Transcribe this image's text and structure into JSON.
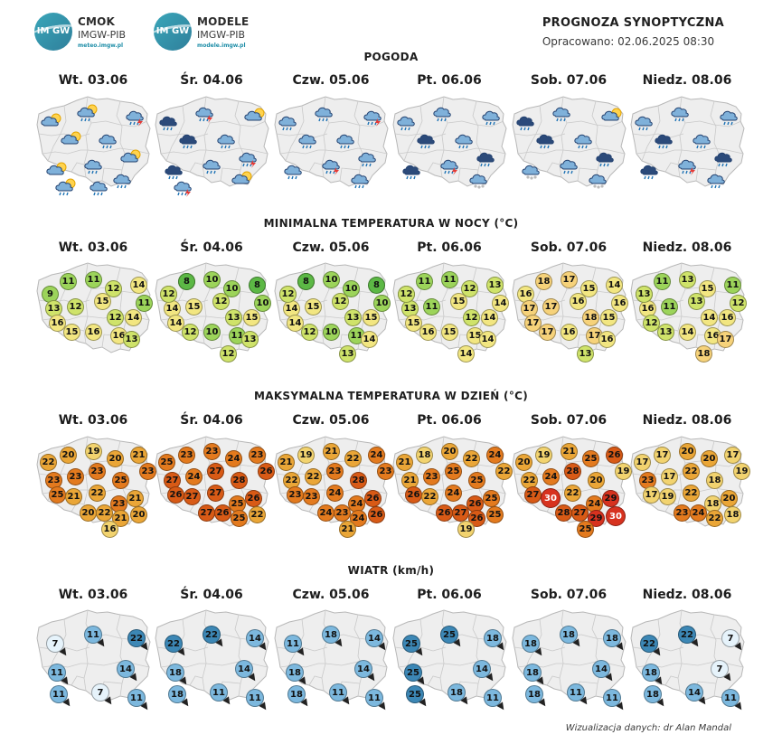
{
  "header": {
    "logo1": {
      "name": "CMOK",
      "sub": "IMGW-PIB",
      "url": "meteo.imgw.pl",
      "mark": "IM GW"
    },
    "logo2": {
      "name": "MODELE",
      "sub": "IMGW-PIB",
      "url": "modele.imgw.pl",
      "mark": "IM GW"
    },
    "title": "PROGNOZA SYNOPTYCZNA",
    "date": "Opracowano: 02.06.2025 08:30"
  },
  "days": [
    "Wt. 03.06",
    "Śr. 04.06",
    "Czw. 05.06",
    "Pt. 06.06",
    "Sob. 07.06",
    "Niedz. 08.06"
  ],
  "sections": {
    "weather": "POGODA",
    "min": "MINIMALNA TEMPERATURA W NOCY (°C)",
    "max": "MAKSYMALNA TEMPERATURA W DZIEŃ (°C)",
    "wind": "WIATR (km/h)"
  },
  "colors": {
    "map_fill": "#eeeeee",
    "map_stroke": "#b8b8b8",
    "min_green_dark": "#5cb845",
    "min_green": "#9cd45a",
    "min_yellowgreen": "#cfe36a",
    "min_yellow": "#f2e681",
    "min_orange_light": "#f6d27a",
    "max_light": "#f2d36f",
    "max_mid": "#eaa637",
    "max_strong": "#e37a1e",
    "max_deep": "#d85a16",
    "max_hot": "#d7321f",
    "wind_light": "#e6f3fb",
    "wind_mid": "#7cb8de",
    "wind_dark": "#3c87b5"
  },
  "weather_icons": [
    [
      "cloud-sun",
      "cloud-rain-sun",
      "cloud-rain-thunder",
      "cloud-sun",
      "cloud-rain",
      "cloud-sun",
      "cloud-sun",
      "cloud-rain",
      "cloud-rain",
      "cloud-rain-sun",
      "cloud-rain"
    ],
    [
      "cloud-rain-dark",
      "cloud-rain-thunder",
      "cloud-sun",
      "cloud-rain-dark",
      "cloud-rain",
      "cloud-rain-thunder",
      "cloud-rain-dark",
      "cloud-rain",
      "cloud-sun",
      "cloud-rain-thunder"
    ],
    [
      "cloud-rain",
      "cloud-rain",
      "cloud-rain-thunder",
      "cloud-rain",
      "cloud-rain",
      "cloud-rain",
      "cloud-rain",
      "cloud-rain-thunder",
      "cloud-rain"
    ],
    [
      "cloud-rain",
      "cloud-rain",
      "cloud-rain",
      "cloud-rain-dark",
      "cloud-rain",
      "cloud-rain-dark",
      "cloud-rain-dark",
      "cloud-rain-thunder",
      "cloud-hail"
    ],
    [
      "cloud-rain-dark",
      "cloud-rain",
      "cloud-sun",
      "cloud-rain-dark",
      "cloud-rain",
      "cloud-rain-dark",
      "cloud-hail",
      "cloud-rain",
      "cloud-hail"
    ],
    [
      "cloud-rain",
      "cloud-rain",
      "cloud-rain",
      "cloud-rain-dark",
      "cloud-rain",
      "cloud-rain-dark",
      "cloud-rain-dark",
      "cloud-rain-thunder",
      "cloud-rain"
    ]
  ],
  "min_temps": [
    [
      "9",
      "11",
      "11",
      "12",
      "14",
      "11",
      "13",
      "12",
      "15",
      "12",
      "14",
      "16",
      "15",
      "16",
      "16",
      "13"
    ],
    [
      "15",
      "13",
      "10",
      "10",
      "8",
      "10",
      "14",
      "15",
      "12",
      "13",
      "15",
      "14",
      "12",
      "10",
      "11",
      "13",
      "12",
      "12",
      "8"
    ],
    [
      "15",
      "13",
      "10",
      "10",
      "8",
      "10",
      "14",
      "15",
      "12",
      "13",
      "15",
      "14",
      "12",
      "10",
      "11",
      "14",
      "13",
      "12",
      "8"
    ],
    [
      "11",
      "11",
      "11",
      "12",
      "13",
      "14",
      "13",
      "11",
      "15",
      "12",
      "14",
      "15",
      "16",
      "15",
      "15",
      "14",
      "14",
      "12"
    ],
    [
      "16",
      "18",
      "17",
      "15",
      "14",
      "16",
      "17",
      "17",
      "16",
      "18",
      "15",
      "17",
      "17",
      "16",
      "17",
      "16",
      "13"
    ],
    [
      "11",
      "11",
      "13",
      "15",
      "11",
      "12",
      "16",
      "11",
      "13",
      "14",
      "16",
      "12",
      "13",
      "14",
      "16",
      "17",
      "18",
      "13"
    ]
  ],
  "max_temps": [
    [
      "22",
      "20",
      "19",
      "20",
      "21",
      "23",
      "23",
      "23",
      "23",
      "25",
      "25",
      "21",
      "22",
      "23",
      "21",
      "20",
      "22",
      "21",
      "20",
      "16"
    ],
    [
      "25",
      "23",
      "23",
      "24",
      "23",
      "26",
      "27",
      "24",
      "27",
      "28",
      "26",
      "27",
      "27",
      "25",
      "26",
      "27",
      "26",
      "25",
      "22"
    ],
    [
      "21",
      "19",
      "21",
      "22",
      "24",
      "23",
      "22",
      "22",
      "23",
      "28",
      "23",
      "23",
      "24",
      "24",
      "26",
      "24",
      "23",
      "24",
      "26",
      "21"
    ],
    [
      "21",
      "18",
      "20",
      "22",
      "24",
      "22",
      "21",
      "23",
      "25",
      "25",
      "26",
      "22",
      "24",
      "26",
      "25",
      "26",
      "27",
      "26",
      "25",
      "19"
    ],
    [
      "20",
      "19",
      "21",
      "25",
      "26",
      "19",
      "22",
      "24",
      "28",
      "20",
      "27",
      "30",
      "22",
      "24",
      "29",
      "28",
      "27",
      "29",
      "30",
      "25"
    ],
    [
      "17",
      "17",
      "20",
      "20",
      "17",
      "19",
      "23",
      "17",
      "22",
      "18",
      "17",
      "19",
      "22",
      "18",
      "20",
      "23",
      "24",
      "22",
      "18"
    ]
  ],
  "wind": [
    [
      "7",
      "11",
      "22",
      "11",
      "14",
      "11",
      "7",
      "11"
    ],
    [
      "22",
      "22",
      "14",
      "18",
      "14",
      "18",
      "11",
      "11"
    ],
    [
      "11",
      "18",
      "14",
      "18",
      "14",
      "18",
      "11",
      "11"
    ],
    [
      "25",
      "25",
      "18",
      "25",
      "14",
      "25",
      "18",
      "11"
    ],
    [
      "18",
      "18",
      "18",
      "18",
      "14",
      "18",
      "11",
      "11"
    ],
    [
      "22",
      "22",
      "7",
      "18",
      "7",
      "18",
      "14",
      "11"
    ]
  ],
  "footer": "Wizualizacja danych: dr Alan Mandal"
}
